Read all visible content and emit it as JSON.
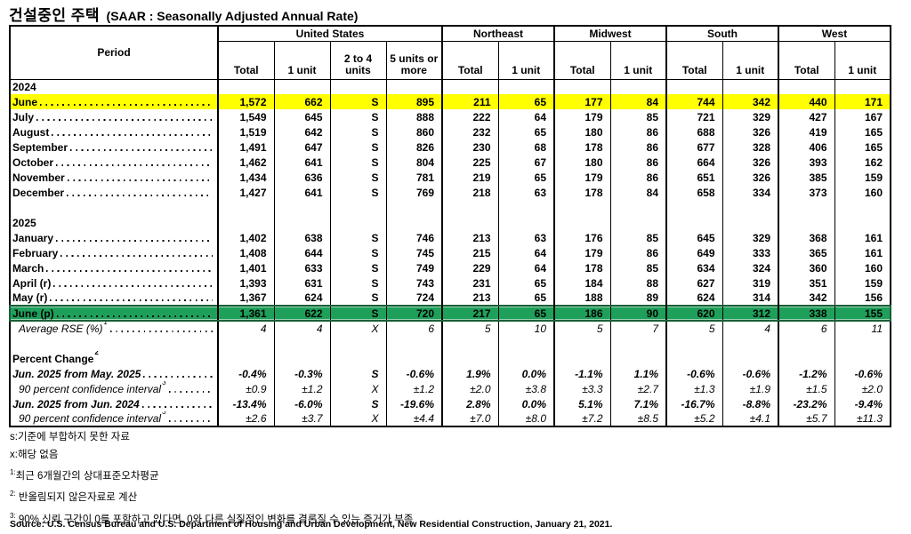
{
  "title": {
    "korean": "건설중인 주택",
    "english": "(SAAR : Seasonally Adjusted Annual Rate)"
  },
  "colors": {
    "highlight_yellow": "#FFFF00",
    "highlight_green": "#1FA05A",
    "selection_border": "#1B5E38"
  },
  "table": {
    "period_header": "Period",
    "groups": [
      {
        "label": "United States",
        "columns": [
          "Total",
          "1 unit",
          "2 to 4 units",
          "5 units or more"
        ]
      },
      {
        "label": "Northeast",
        "columns": [
          "Total",
          "1 unit"
        ]
      },
      {
        "label": "Midwest",
        "columns": [
          "Total",
          "1 unit"
        ]
      },
      {
        "label": "South",
        "columns": [
          "Total",
          "1 unit"
        ]
      },
      {
        "label": "West",
        "columns": [
          "Total",
          "1 unit"
        ]
      }
    ],
    "rows": [
      {
        "type": "year",
        "label": "2024"
      },
      {
        "type": "data",
        "label": "June",
        "highlight": "yellow",
        "values": [
          "1,572",
          "662",
          "S",
          "895",
          "211",
          "65",
          "177",
          "84",
          "744",
          "342",
          "440",
          "171"
        ]
      },
      {
        "type": "data",
        "label": "July",
        "values": [
          "1,549",
          "645",
          "S",
          "888",
          "222",
          "64",
          "179",
          "85",
          "721",
          "329",
          "427",
          "167"
        ]
      },
      {
        "type": "data",
        "label": "August",
        "values": [
          "1,519",
          "642",
          "S",
          "860",
          "232",
          "65",
          "180",
          "86",
          "688",
          "326",
          "419",
          "165"
        ]
      },
      {
        "type": "data",
        "label": "September",
        "values": [
          "1,491",
          "647",
          "S",
          "826",
          "230",
          "68",
          "178",
          "86",
          "677",
          "328",
          "406",
          "165"
        ]
      },
      {
        "type": "data",
        "label": "October",
        "values": [
          "1,462",
          "641",
          "S",
          "804",
          "225",
          "67",
          "180",
          "86",
          "664",
          "326",
          "393",
          "162"
        ]
      },
      {
        "type": "data",
        "label": "November",
        "values": [
          "1,434",
          "636",
          "S",
          "781",
          "219",
          "65",
          "179",
          "86",
          "651",
          "326",
          "385",
          "159"
        ]
      },
      {
        "type": "data",
        "label": "December",
        "values": [
          "1,427",
          "641",
          "S",
          "769",
          "218",
          "63",
          "178",
          "84",
          "658",
          "334",
          "373",
          "160"
        ]
      },
      {
        "type": "blank"
      },
      {
        "type": "year",
        "label": "2025"
      },
      {
        "type": "data",
        "label": "January",
        "values": [
          "1,402",
          "638",
          "S",
          "746",
          "213",
          "63",
          "176",
          "85",
          "645",
          "329",
          "368",
          "161"
        ]
      },
      {
        "type": "data",
        "label": "February",
        "values": [
          "1,408",
          "644",
          "S",
          "745",
          "215",
          "64",
          "179",
          "86",
          "649",
          "333",
          "365",
          "161"
        ]
      },
      {
        "type": "data",
        "label": "March",
        "values": [
          "1,401",
          "633",
          "S",
          "749",
          "229",
          "64",
          "178",
          "85",
          "634",
          "324",
          "360",
          "160"
        ]
      },
      {
        "type": "data",
        "label": "April (r)",
        "values": [
          "1,393",
          "631",
          "S",
          "743",
          "231",
          "65",
          "184",
          "88",
          "627",
          "319",
          "351",
          "159"
        ]
      },
      {
        "type": "data",
        "label": "May (r)",
        "values": [
          "1,367",
          "624",
          "S",
          "724",
          "213",
          "65",
          "188",
          "89",
          "624",
          "314",
          "342",
          "156"
        ]
      },
      {
        "type": "data",
        "label": "June (p)",
        "highlight": "green",
        "values": [
          "1,361",
          "622",
          "S",
          "720",
          "217",
          "65",
          "186",
          "90",
          "620",
          "312",
          "338",
          "155"
        ]
      },
      {
        "type": "data",
        "label": "Average RSE (%)",
        "sup": "1",
        "style": "italic",
        "indent": true,
        "values": [
          "4",
          "4",
          "X",
          "6",
          "5",
          "10",
          "5",
          "7",
          "5",
          "4",
          "6",
          "11"
        ]
      },
      {
        "type": "blank"
      },
      {
        "type": "label",
        "label": "Percent Change",
        "sup": "2"
      },
      {
        "type": "data",
        "label": "Jun. 2025 from May. 2025",
        "style": "bold-italic",
        "values": [
          "-0.4%",
          "-0.3%",
          "S",
          "-0.6%",
          "1.9%",
          "0.0%",
          "-1.1%",
          "1.1%",
          "-0.6%",
          "-0.6%",
          "-1.2%",
          "-0.6%"
        ]
      },
      {
        "type": "data",
        "label": "90 percent confidence interval",
        "sup": "3",
        "style": "italic",
        "indent": true,
        "values": [
          "±0.9",
          "±1.2",
          "X",
          "±1.2",
          "±2.0",
          "±3.8",
          "±3.3",
          "±2.7",
          "±1.3",
          "±1.9",
          "±1.5",
          "±2.0"
        ]
      },
      {
        "type": "data",
        "label": "Jun. 2025 from Jun. 2024",
        "style": "bold-italic",
        "values": [
          "-13.4%",
          "-6.0%",
          "S",
          "-19.6%",
          "2.8%",
          "0.0%",
          "5.1%",
          "7.1%",
          "-16.7%",
          "-8.8%",
          "-23.2%",
          "-9.4%"
        ]
      },
      {
        "type": "data",
        "label": "90 percent confidence interval",
        "sup": "3",
        "style": "italic",
        "indent": true,
        "values": [
          "±2.6",
          "±3.7",
          "X",
          "±4.4",
          "±7.0",
          "±8.0",
          "±7.2",
          "±8.5",
          "±5.2",
          "±4.1",
          "±5.7",
          "±11.3"
        ]
      }
    ]
  },
  "footnotes": [
    {
      "sup": "",
      "text": "s:기준에 부합하지 못한 자료"
    },
    {
      "sup": "",
      "text": "x:해당 없음"
    },
    {
      "sup": "1:",
      "text": "최근 6개월간의 상대표준오차평균"
    },
    {
      "sup": "2:",
      "text": " 반올림되지 않은자료로 계산"
    },
    {
      "sup": "3:",
      "text": " 90% 신뢰 구간이 0를 포함하고 있다면, 0와 다른 실질적인 변화를 결론질 수 있는 증거가 부족"
    }
  ],
  "source": "Source: U.S. Census Bureau and U.S. Department of Housing and Urban Development, New Residential Construction, January 21, 2021."
}
